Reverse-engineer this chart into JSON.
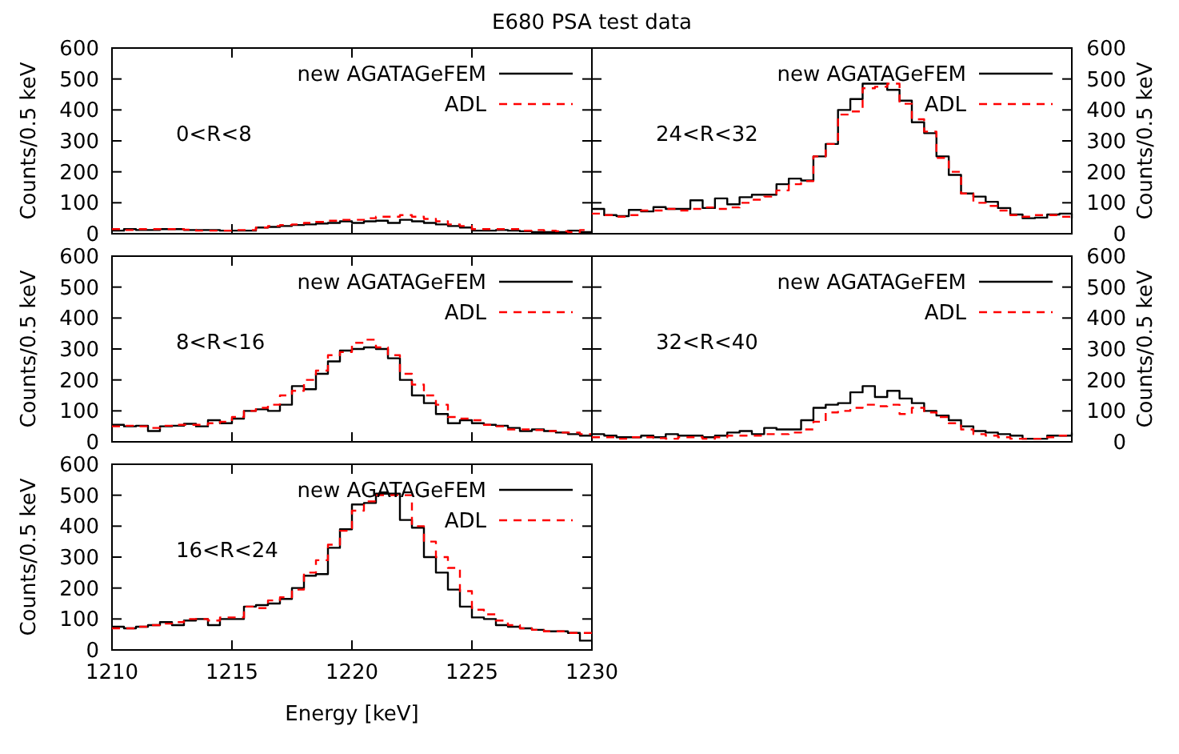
{
  "chart_data": [
    {
      "type": "histogram",
      "title": "E680 PSA test data",
      "ylabel": "Counts/0.5 keV",
      "annotations": [
        "0<R<8"
      ],
      "legend": "top right",
      "tick_labels": "y",
      "xlim": [
        1210,
        1230
      ],
      "ylim": [
        0,
        600
      ],
      "xticks": [
        {
          "value": 1210,
          "label": null
        },
        {
          "value": 1215,
          "label": null
        },
        {
          "value": 1220,
          "label": null
        },
        {
          "value": 1225,
          "label": null
        },
        {
          "value": 1230,
          "label": null
        }
      ],
      "yticks": [
        0,
        100,
        200,
        300,
        400,
        500,
        600
      ],
      "bins": [
        1210,
        1210.5,
        1211,
        1211.5,
        1212,
        1212.5,
        1213,
        1213.5,
        1214,
        1214.5,
        1215,
        1215.5,
        1216,
        1216.5,
        1217,
        1217.5,
        1218,
        1218.5,
        1219,
        1219.5,
        1220,
        1220.5,
        1221,
        1221.5,
        1222,
        1222.5,
        1223,
        1223.5,
        1224,
        1224.5,
        1225,
        1225.5,
        1226,
        1226.5,
        1227,
        1227.5,
        1228,
        1228.5,
        1229,
        1229.5,
        1230
      ],
      "series": [
        {
          "name": "new AGATAGeFEM",
          "color": "#000000",
          "line_style": "solid",
          "values": [
            10,
            15,
            12,
            12,
            15,
            15,
            12,
            12,
            12,
            10,
            10,
            10,
            20,
            22,
            25,
            28,
            30,
            33,
            35,
            40,
            35,
            40,
            42,
            35,
            45,
            40,
            35,
            30,
            25,
            20,
            10,
            10,
            12,
            10,
            8,
            5,
            5,
            5,
            10,
            5
          ]
        },
        {
          "name": "ADL",
          "color": "#ff0000",
          "line_style": "dashed",
          "values": [
            15,
            12,
            15,
            15,
            15,
            15,
            13,
            10,
            10,
            10,
            12,
            12,
            20,
            25,
            28,
            30,
            35,
            38,
            42,
            45,
            45,
            50,
            55,
            55,
            60,
            55,
            48,
            40,
            30,
            25,
            15,
            15,
            15,
            15,
            10,
            12,
            10,
            8,
            5,
            12
          ]
        }
      ]
    },
    {
      "type": "step",
      "ylabel": "Counts/0.5 keV",
      "annotations": [
        "24<R<32"
      ],
      "legend": "top right",
      "tick_labels": "y",
      "ylim": [
        0,
        600
      ],
      "yticks": [
        0,
        100,
        200,
        300,
        400,
        500,
        600
      ],
      "categories": [
        null,
        null,
        null,
        null,
        null,
        null,
        null,
        null,
        null,
        null,
        null,
        null,
        null,
        null,
        null,
        null,
        null,
        null,
        null,
        null,
        null,
        null,
        null,
        null,
        null,
        null,
        null,
        null,
        null,
        null,
        null,
        null,
        null,
        null,
        null,
        null,
        null,
        null,
        null,
        null
      ],
      "series": [
        {
          "name": "new AGATAGeFEM",
          "color": "#000000",
          "line_style": "solid",
          "values": [
            80,
            60,
            57,
            77,
            72,
            86,
            80,
            80,
            108,
            83,
            114,
            95,
            118,
            126,
            126,
            160,
            178,
            172,
            250,
            290,
            400,
            435,
            485,
            485,
            465,
            430,
            360,
            325,
            250,
            190,
            130,
            120,
            103,
            83,
            62,
            50,
            52,
            62,
            65,
            50
          ]
        },
        {
          "name": "ADL",
          "color": "#ff0000",
          "line_style": "dashed",
          "values": [
            65,
            60,
            55,
            60,
            75,
            75,
            80,
            75,
            80,
            85,
            80,
            85,
            100,
            110,
            120,
            140,
            160,
            170,
            250,
            290,
            385,
            395,
            470,
            475,
            485,
            420,
            370,
            330,
            245,
            200,
            130,
            100,
            90,
            75,
            60,
            55,
            60,
            60,
            55,
            45
          ]
        }
      ]
    },
    {
      "type": "histogram",
      "ylabel": "Counts/0.5 keV",
      "annotations": [
        "8<R<16"
      ],
      "legend": "top right",
      "tick_labels": "y",
      "xlim": [
        1210,
        1230
      ],
      "ylim": [
        0,
        600
      ],
      "xticks": [
        {
          "value": 1210,
          "label": null
        },
        {
          "value": 1215,
          "label": null
        },
        {
          "value": 1220,
          "label": null
        },
        {
          "value": 1225,
          "label": null
        },
        {
          "value": 1230,
          "label": null
        }
      ],
      "yticks": [
        0,
        100,
        200,
        300,
        400,
        500,
        600
      ],
      "bins": [
        1210,
        1210.5,
        1211,
        1211.5,
        1212,
        1212.5,
        1213,
        1213.5,
        1214,
        1214.5,
        1215,
        1215.5,
        1216,
        1216.5,
        1217,
        1217.5,
        1218,
        1218.5,
        1219,
        1219.5,
        1220,
        1220.5,
        1221,
        1221.5,
        1222,
        1222.5,
        1223,
        1223.5,
        1224,
        1224.5,
        1225,
        1225.5,
        1226,
        1226.5,
        1227,
        1227.5,
        1228,
        1228.5,
        1229,
        1229.5,
        1230
      ],
      "series": [
        {
          "name": "new AGATAGeFEM",
          "color": "#000000",
          "line_style": "solid",
          "values": [
            55,
            50,
            52,
            35,
            50,
            52,
            58,
            50,
            70,
            60,
            75,
            100,
            105,
            100,
            120,
            180,
            170,
            220,
            260,
            295,
            300,
            305,
            300,
            270,
            200,
            150,
            125,
            90,
            60,
            70,
            60,
            55,
            52,
            45,
            35,
            40,
            35,
            30,
            25,
            20
          ]
        },
        {
          "name": "ADL",
          "color": "#ff0000",
          "line_style": "dashed",
          "values": [
            50,
            52,
            50,
            45,
            52,
            55,
            55,
            55,
            60,
            65,
            80,
            100,
            110,
            120,
            150,
            165,
            200,
            230,
            280,
            290,
            320,
            330,
            305,
            280,
            220,
            185,
            150,
            120,
            80,
            75,
            70,
            55,
            50,
            40,
            40,
            38,
            35,
            30,
            30,
            25
          ]
        }
      ]
    },
    {
      "type": "step",
      "ylabel": "Counts/0.5 keV",
      "annotations": [
        "32<R<40"
      ],
      "legend": "top right",
      "tick_labels": "y",
      "ylim": [
        0,
        600
      ],
      "yticks": [
        0,
        100,
        200,
        300,
        400,
        500,
        600
      ],
      "categories": [
        null,
        null,
        null,
        null,
        null,
        null,
        null,
        null,
        null,
        null,
        null,
        null,
        null,
        null,
        null,
        null,
        null,
        null,
        null,
        null,
        null,
        null,
        null,
        null,
        null,
        null,
        null,
        null,
        null,
        null,
        null,
        null,
        null,
        null,
        null,
        null,
        null,
        null,
        null,
        null
      ],
      "series": [
        {
          "name": "new AGATAGeFEM",
          "color": "#000000",
          "line_style": "solid",
          "values": [
            25,
            20,
            15,
            15,
            20,
            15,
            25,
            20,
            20,
            15,
            20,
            30,
            35,
            25,
            45,
            40,
            40,
            70,
            110,
            120,
            125,
            160,
            180,
            145,
            165,
            140,
            125,
            100,
            85,
            70,
            50,
            35,
            30,
            25,
            20,
            10,
            10,
            20,
            20,
            30
          ]
        },
        {
          "name": "ADL",
          "color": "#ff0000",
          "line_style": "dashed",
          "values": [
            15,
            15,
            10,
            15,
            15,
            12,
            10,
            15,
            15,
            10,
            15,
            20,
            20,
            20,
            25,
            25,
            30,
            40,
            65,
            95,
            100,
            110,
            120,
            115,
            120,
            90,
            110,
            95,
            80,
            60,
            40,
            25,
            20,
            15,
            10,
            10,
            10,
            15,
            20,
            25
          ]
        }
      ]
    },
    {
      "type": "histogram",
      "xlabel": "Energy [keV]",
      "ylabel": "Counts/0.5 keV",
      "annotations": [
        "16<R<24"
      ],
      "legend": "top right",
      "xlim": [
        1210,
        1230
      ],
      "ylim": [
        0,
        600
      ],
      "xticks": [
        1210,
        1215,
        1220,
        1225,
        1230
      ],
      "yticks": [
        0,
        100,
        200,
        300,
        400,
        500,
        600
      ],
      "bins": [
        1210,
        1210.5,
        1211,
        1211.5,
        1212,
        1212.5,
        1213,
        1213.5,
        1214,
        1214.5,
        1215,
        1215.5,
        1216,
        1216.5,
        1217,
        1217.5,
        1218,
        1218.5,
        1219,
        1219.5,
        1220,
        1220.5,
        1221,
        1221.5,
        1222,
        1222.5,
        1223,
        1223.5,
        1224,
        1224.5,
        1225,
        1225.5,
        1226,
        1226.5,
        1227,
        1227.5,
        1228,
        1228.5,
        1229,
        1229.5,
        1230
      ],
      "series": [
        {
          "name": "new AGATAGeFEM",
          "color": "#000000",
          "line_style": "solid",
          "values": [
            75,
            70,
            75,
            80,
            90,
            80,
            95,
            100,
            80,
            100,
            100,
            140,
            145,
            150,
            165,
            200,
            240,
            245,
            330,
            390,
            470,
            475,
            505,
            505,
            420,
            395,
            300,
            250,
            195,
            140,
            105,
            100,
            80,
            75,
            70,
            65,
            60,
            60,
            55,
            30
          ]
        },
        {
          "name": "ADL",
          "color": "#ff0000",
          "line_style": "dashed",
          "values": [
            70,
            70,
            75,
            80,
            85,
            90,
            100,
            100,
            95,
            105,
            105,
            140,
            135,
            160,
            170,
            195,
            250,
            290,
            340,
            385,
            450,
            480,
            500,
            500,
            500,
            400,
            350,
            300,
            265,
            190,
            130,
            115,
            95,
            80,
            70,
            65,
            60,
            60,
            55,
            55
          ]
        }
      ]
    }
  ]
}
